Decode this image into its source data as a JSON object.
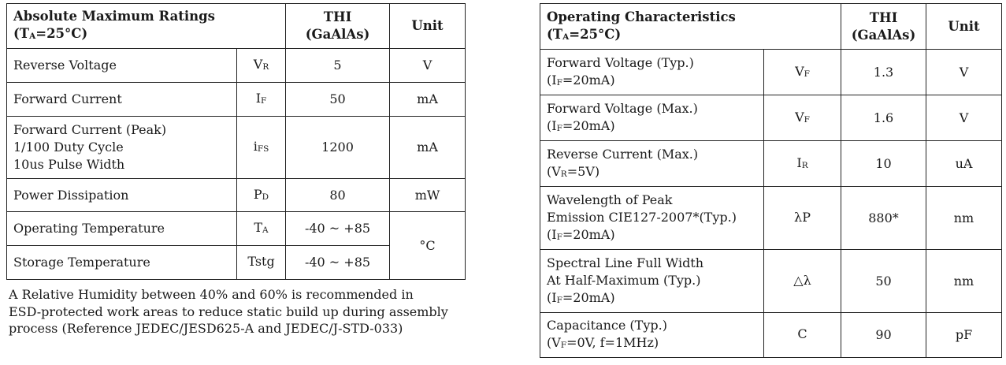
{
  "abs": {
    "title": "Absolute Maximum Ratings",
    "cond_prefix": "(T",
    "cond_sub": "A",
    "cond_suffix": "=25°C)",
    "col_thi_line1": "THI",
    "col_thi_line2": "(GaAlAs)",
    "col_unit": "Unit",
    "rows": [
      {
        "param": [
          "Reverse Voltage"
        ],
        "sym": "V",
        "sym_sub": "R",
        "value": "5",
        "unit": "V"
      },
      {
        "param": [
          "Forward Current"
        ],
        "sym": "I",
        "sym_sub": "F",
        "value": "50",
        "unit": "mA"
      },
      {
        "param": [
          "Forward Current (Peak)",
          "1/100 Duty Cycle",
          "10us Pulse Width"
        ],
        "sym": "i",
        "sym_sub": "FS",
        "value": "1200",
        "unit": "mA"
      },
      {
        "param": [
          "Power Dissipation"
        ],
        "sym": "P",
        "sym_sub": "D",
        "value": "80",
        "unit": "mW"
      },
      {
        "param": [
          "Operating Temperature"
        ],
        "sym": "T",
        "sym_sub": "A",
        "value": "-40 ~ +85",
        "unit": "°C"
      },
      {
        "param": [
          "Storage Temperature"
        ],
        "sym": "Tstg",
        "sym_sub": "",
        "value": "-40 ~ +85"
      }
    ]
  },
  "note": {
    "lines": [
      "A Relative Humidity between 40% and 60% is recommended in",
      "ESD-protected work areas to reduce static build up during assembly",
      "process (Reference JEDEC/JESD625-A and JEDEC/J-STD-033)"
    ]
  },
  "ops": {
    "title": "Operating Characteristics",
    "cond_prefix": "(T",
    "cond_sub": "A",
    "cond_suffix": "=25°C)",
    "col_thi_line1": "THI",
    "col_thi_line2": "(GaAlAs)",
    "col_unit": "Unit",
    "rows": [
      {
        "param": [
          "Forward Voltage (Typ.)"
        ],
        "cond": {
          "pre": "(I",
          "sub": "F",
          "post": "=20mA)"
        },
        "sym": "V",
        "sym_sub": "F",
        "value": "1.3",
        "unit": "V"
      },
      {
        "param": [
          "Forward Voltage (Max.)"
        ],
        "cond": {
          "pre": "(I",
          "sub": "F",
          "post": "=20mA)"
        },
        "sym": "V",
        "sym_sub": "F",
        "value": "1.6",
        "unit": "V"
      },
      {
        "param": [
          "Reverse Current (Max.)"
        ],
        "cond": {
          "pre": "(V",
          "sub": "R",
          "post": "=5V)"
        },
        "sym": "I",
        "sym_sub": "R",
        "value": "10",
        "unit": "uA"
      },
      {
        "param": [
          "Wavelength of Peak",
          "Emission CIE127-2007*(Typ.)"
        ],
        "cond": {
          "pre": "(I",
          "sub": "F",
          "post": "=20mA)"
        },
        "sym": "λP",
        "sym_sub": "",
        "value": "880*",
        "unit": "nm"
      },
      {
        "param": [
          "Spectral Line Full Width",
          "At Half-Maximum (Typ.)"
        ],
        "cond": {
          "pre": "(I",
          "sub": "F",
          "post": "=20mA)"
        },
        "sym": "△λ",
        "sym_sub": "",
        "value": "50",
        "unit": "nm"
      },
      {
        "param": [
          "Capacitance (Typ.)"
        ],
        "cond": {
          "pre": "(V",
          "sub": "F",
          "post": "=0V, f=1MHz)"
        },
        "sym": "C",
        "sym_sub": "",
        "value": "90",
        "unit": "pF"
      }
    ]
  }
}
